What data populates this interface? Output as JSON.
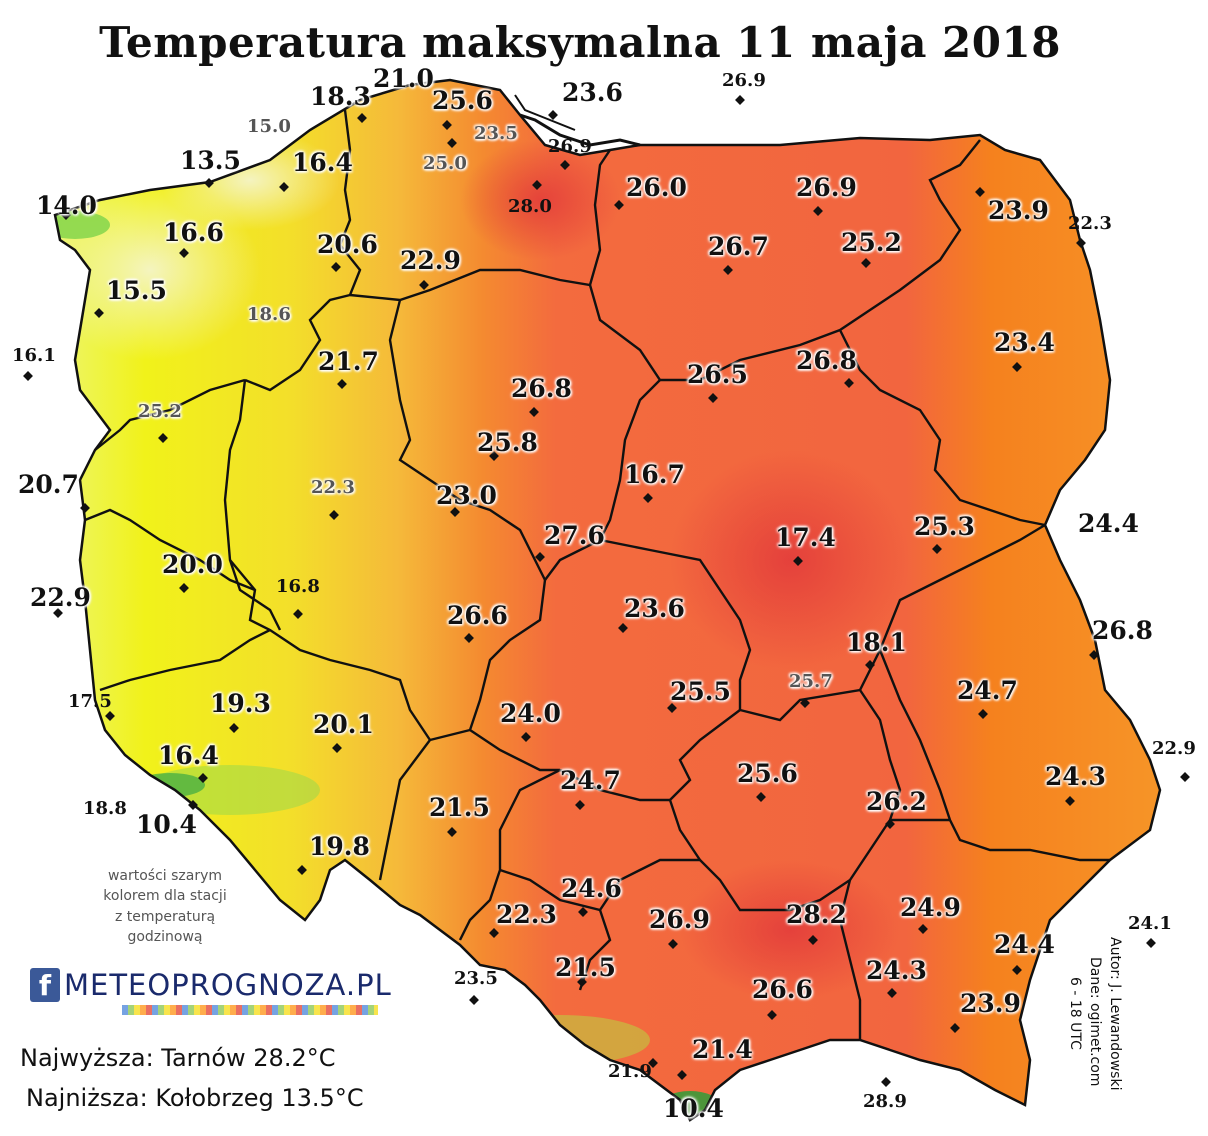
{
  "title": "Temperatura maksymalna 11 maja 2018",
  "stations": [
    {
      "text": "21.0",
      "style": "big"
    },
    {
      "text": "18.3",
      "style": "big"
    },
    {
      "text": "25.6",
      "style": "big"
    },
    {
      "text": "23.6",
      "style": "big"
    },
    {
      "text": "26.9",
      "style": "small"
    },
    {
      "text": "15.0",
      "style": "gray"
    },
    {
      "text": "23.5",
      "style": "gray"
    },
    {
      "text": "26.9",
      "style": "small"
    },
    {
      "text": "25.0",
      "style": "gray"
    },
    {
      "text": "13.5",
      "style": "big"
    },
    {
      "text": "16.4",
      "style": "big"
    },
    {
      "text": "28.0",
      "style": "small"
    },
    {
      "text": "26.0",
      "style": "big"
    },
    {
      "text": "26.9",
      "style": "big"
    },
    {
      "text": "14.0",
      "style": "big"
    },
    {
      "text": "23.9",
      "style": "big"
    },
    {
      "text": "22.3",
      "style": "small"
    },
    {
      "text": "16.6",
      "style": "big"
    },
    {
      "text": "20.6",
      "style": "big"
    },
    {
      "text": "26.7",
      "style": "big"
    },
    {
      "text": "25.2",
      "style": "big"
    },
    {
      "text": "22.9",
      "style": "big"
    },
    {
      "text": "15.5",
      "style": "big"
    },
    {
      "text": "18.6",
      "style": "gray"
    },
    {
      "text": "23.4",
      "style": "big"
    },
    {
      "text": "16.1",
      "style": "small"
    },
    {
      "text": "21.7",
      "style": "big"
    },
    {
      "text": "26.8",
      "style": "big"
    },
    {
      "text": "26.5",
      "style": "big"
    },
    {
      "text": "26.8",
      "style": "big"
    },
    {
      "text": "18.1",
      "style": "big"
    },
    {
      "text": "25.2",
      "style": "gray"
    },
    {
      "text": "25.8",
      "style": "big"
    },
    {
      "text": "16.7",
      "style": "big"
    },
    {
      "text": "20.7",
      "style": "big"
    },
    {
      "text": "22.3",
      "style": "gray"
    },
    {
      "text": "23.0",
      "style": "big"
    },
    {
      "text": "24.4",
      "style": "big"
    },
    {
      "text": "25.3",
      "style": "big"
    },
    {
      "text": "27.6",
      "style": "big"
    },
    {
      "text": "17.4",
      "style": "big"
    },
    {
      "text": "20.0",
      "style": "big"
    },
    {
      "text": "16.8",
      "style": "small"
    },
    {
      "text": "22.9",
      "style": "big"
    },
    {
      "text": "26.6",
      "style": "big"
    },
    {
      "text": "23.6",
      "style": "big"
    },
    {
      "text": "26.8",
      "style": "big"
    },
    {
      "text": "17.5",
      "style": "small"
    },
    {
      "text": "19.3",
      "style": "big"
    },
    {
      "text": "24.7",
      "style": "big"
    },
    {
      "text": "25.5",
      "style": "big"
    },
    {
      "text": "25.7",
      "style": "gray"
    },
    {
      "text": "20.1",
      "style": "big"
    },
    {
      "text": "24.0",
      "style": "big"
    },
    {
      "text": "22.9",
      "style": "small"
    },
    {
      "text": "16.4",
      "style": "big"
    },
    {
      "text": "24.7",
      "style": "big"
    },
    {
      "text": "25.6",
      "style": "big"
    },
    {
      "text": "24.3",
      "style": "big"
    },
    {
      "text": "18.8",
      "style": "small"
    },
    {
      "text": "10.4",
      "style": "big"
    },
    {
      "text": "21.5",
      "style": "big"
    },
    {
      "text": "26.2",
      "style": "big"
    },
    {
      "text": "19.8",
      "style": "big"
    },
    {
      "text": "24.6",
      "style": "big"
    },
    {
      "text": "24.9",
      "style": "big"
    },
    {
      "text": "22.3",
      "style": "big"
    },
    {
      "text": "26.9",
      "style": "big"
    },
    {
      "text": "28.2",
      "style": "big"
    },
    {
      "text": "24.1",
      "style": "small"
    },
    {
      "text": "24.4",
      "style": "big"
    },
    {
      "text": "23.5",
      "style": "small"
    },
    {
      "text": "21.5",
      "style": "big"
    },
    {
      "text": "24.3",
      "style": "big"
    },
    {
      "text": "26.6",
      "style": "big"
    },
    {
      "text": "23.9",
      "style": "big"
    },
    {
      "text": "21.4",
      "style": "big"
    },
    {
      "text": "21.9",
      "style": "small"
    },
    {
      "text": "28.9",
      "style": "small"
    },
    {
      "text": "10.4",
      "style": "big"
    }
  ],
  "note": {
    "line1": "wartości szarym",
    "line2": "kolorem dla stacji",
    "line3": "z temperaturą",
    "line4": "godzinową"
  },
  "logo": {
    "icon": "facebook-icon",
    "text": "METEOPROGNOZA.PL"
  },
  "summary": {
    "highest": "Najwyższa: Tarnów 28.2°C",
    "lowest": "Najniższa: Kołobrzeg 13.5°C"
  },
  "credits": {
    "author": "Autor: J. Lewandowski",
    "data": "Dane: ogimet.com",
    "hours": "6 - 18 UTC"
  },
  "colors": {
    "cold": "#eaf2a0",
    "yellow": "#f2f010",
    "orange": "#f6a43a",
    "red_orange": "#f26a3c",
    "hot": "#e9443c",
    "green_mountain": "#6fd24a"
  }
}
